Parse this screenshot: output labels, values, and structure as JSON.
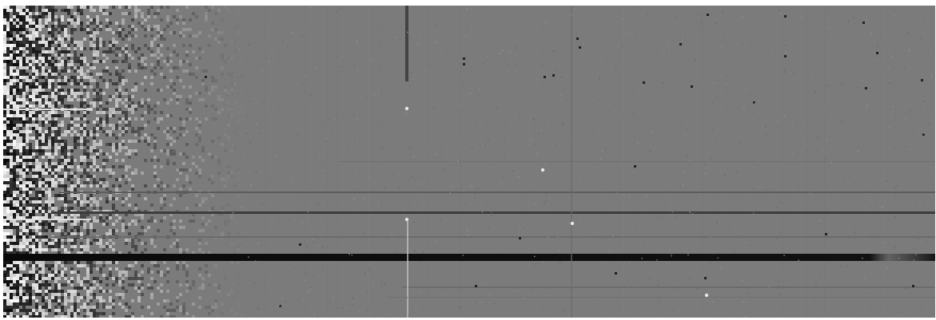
{
  "image": {
    "description_name": "spectrum-frame",
    "colors": {
      "page_background": "#ffffff",
      "sky_background": "#7b7b7b",
      "dark_trace": "#141414",
      "bright_feature": "#e6e6e6"
    }
  }
}
